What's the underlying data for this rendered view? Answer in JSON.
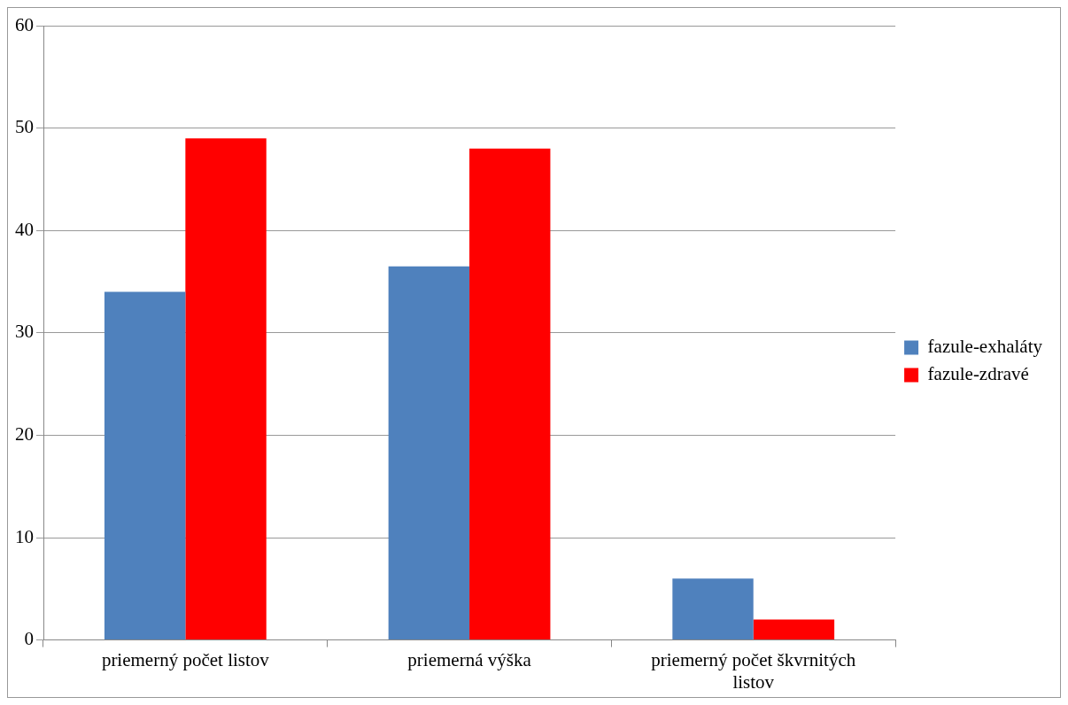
{
  "chart_data": {
    "type": "bar",
    "categories": [
      "priemerný počet listov",
      "priemerná výška",
      "priemerný počet škvrnitých listov"
    ],
    "series": [
      {
        "name": "fazule-exhaláty",
        "color": "#4f81bd",
        "values": [
          34,
          36.5,
          6
        ]
      },
      {
        "name": "fazule-zdravé",
        "color": "#ff0000",
        "values": [
          49,
          48,
          2
        ]
      }
    ],
    "ylim": [
      0,
      60
    ],
    "yticks": [
      0,
      10,
      20,
      30,
      40,
      50,
      60
    ],
    "grid": "y",
    "legend": "right"
  }
}
